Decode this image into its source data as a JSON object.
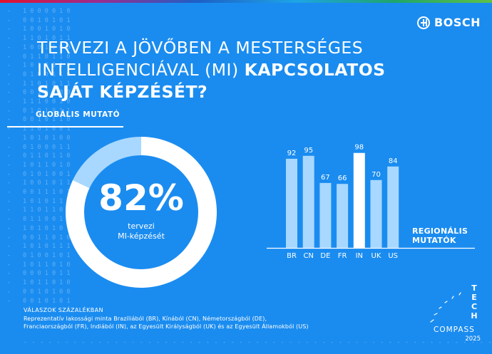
{
  "brand": {
    "name": "BOSCH",
    "logo_icon": "bosch-armature-icon"
  },
  "title": {
    "line1": "TERVEZI A JÖVŐBEN A MESTERSÉGES",
    "line2_light": "INTELLIGENCIÁVAL (MI)",
    "line2_bold": "KAPCSOLATOS",
    "line3_bold": "SAJÁT KÉPZÉSÉT?"
  },
  "global": {
    "label": "GLOBÁLIS MUTATÓ",
    "value_text": "82%",
    "sub1": "tervezi",
    "sub2": "MI-képzését",
    "ring_color": "#ffffff",
    "rest_color": "#a8d8ff"
  },
  "regional_label": {
    "line1": "REGIONÁLIS",
    "line2": "MUTATÓK"
  },
  "chart_data": [
    {
      "type": "pie",
      "values": [
        82,
        18
      ],
      "colors": [
        "#ffffff",
        "#a8d8ff"
      ]
    },
    {
      "type": "bar",
      "categories": [
        "BR",
        "CN",
        "DE",
        "FR",
        "IN",
        "UK",
        "US"
      ],
      "values": [
        92,
        95,
        67,
        66,
        98,
        70,
        84
      ],
      "ylim": [
        0,
        100
      ],
      "highlight": "IN",
      "bar_color": "#a8d8ff",
      "highlight_color": "#ffffff",
      "grid": false
    }
  ],
  "footer": {
    "heading": "VÁLASZOK SZÁZALÉKBAN",
    "line1": "Reprezentatív lakossági minta Brazíliából (BR), Kínából (CN), Németországból (DE),",
    "line2": "Franciaországból (FR), Indiából (IN), az Egyesült Királyságból (UK) és az Egyesült Államokból (US)"
  },
  "tech_compass": {
    "letters": [
      "T",
      "E",
      "C",
      "H"
    ],
    "word": "COMPASS",
    "year": "2025"
  }
}
